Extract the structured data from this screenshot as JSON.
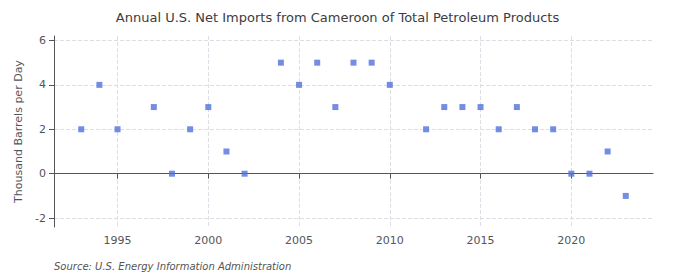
{
  "chart_data": {
    "type": "scatter",
    "title": "Annual U.S. Net Imports from Cameroon of Total Petroleum Products",
    "ylabel": "Thousand Barrels per Day",
    "annotations": [
      "Source: U.S. Energy Information Administration"
    ],
    "x": [
      1993,
      1994,
      1995,
      1997,
      1998,
      1999,
      2000,
      2001,
      2002,
      2004,
      2005,
      2006,
      2007,
      2008,
      2009,
      2010,
      2012,
      2013,
      2014,
      2015,
      2016,
      2017,
      2018,
      2019,
      2020,
      2021,
      2022,
      2023
    ],
    "values": [
      2,
      4,
      2,
      3,
      0,
      2,
      3,
      1,
      0,
      5,
      4,
      5,
      3,
      5,
      5,
      4,
      2,
      3,
      3,
      3,
      2,
      3,
      2,
      2,
      0,
      0,
      1,
      -1
    ],
    "xlim": [
      1991.5,
      2024.5
    ],
    "xticks": [
      1995,
      2000,
      2005,
      2010,
      2015,
      2020
    ],
    "ylim": [
      -2.4,
      6.2
    ],
    "yticks": [
      -2,
      0,
      2,
      4,
      6
    ],
    "grid": true,
    "marker": "square"
  }
}
